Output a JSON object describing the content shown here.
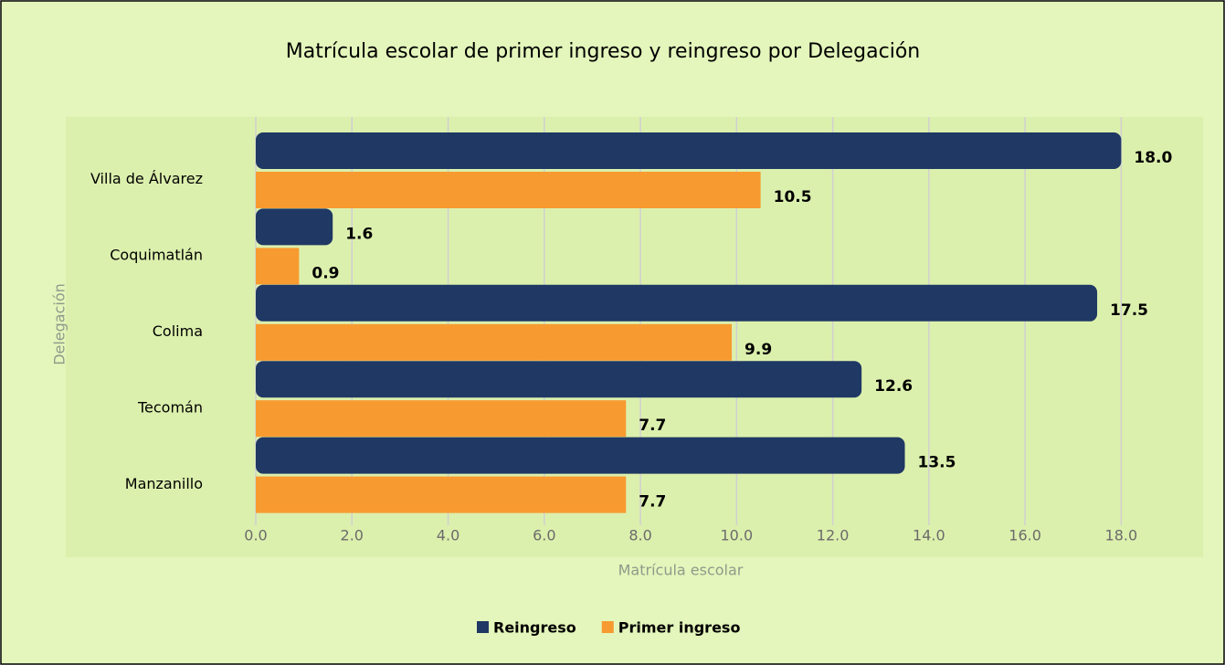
{
  "chart_data": {
    "type": "hbar",
    "title": "Matrícula escolar de primer ingreso y reingreso por Delegación",
    "xlabel": "Matrícula escolar",
    "ylabel": "Delegación",
    "categories": [
      "Villa de Álvarez",
      "Coquimatlán",
      "Colima",
      "Tecomán",
      "Manzanillo"
    ],
    "series": [
      {
        "name": "Reingreso",
        "color": "#1f3864",
        "values": [
          18.0,
          1.6,
          17.5,
          12.6,
          13.5
        ],
        "value_labels": [
          "18.0",
          "1.6",
          "17.5",
          "12.6",
          "13.5"
        ]
      },
      {
        "name": "Primer ingreso",
        "color": "#f79a30",
        "values": [
          10.5,
          0.9,
          9.9,
          7.7,
          7.7
        ],
        "value_labels": [
          "10.5",
          "0.9",
          "9.9",
          "7.7",
          "7.7"
        ]
      }
    ],
    "xlim": [
      0,
      19
    ],
    "xticks": [
      {
        "value": 0,
        "label": "0.0"
      },
      {
        "value": 2,
        "label": "2.0"
      },
      {
        "value": 4,
        "label": "4.0"
      },
      {
        "value": 6,
        "label": "6.0"
      },
      {
        "value": 8,
        "label": "8.0"
      },
      {
        "value": 10,
        "label": "10.0"
      },
      {
        "value": 12,
        "label": "12.0"
      },
      {
        "value": 14,
        "label": "14.0"
      },
      {
        "value": 16,
        "label": "16.0"
      },
      {
        "value": 18,
        "label": "18.0"
      }
    ],
    "grid": true,
    "legend": "bottom"
  }
}
